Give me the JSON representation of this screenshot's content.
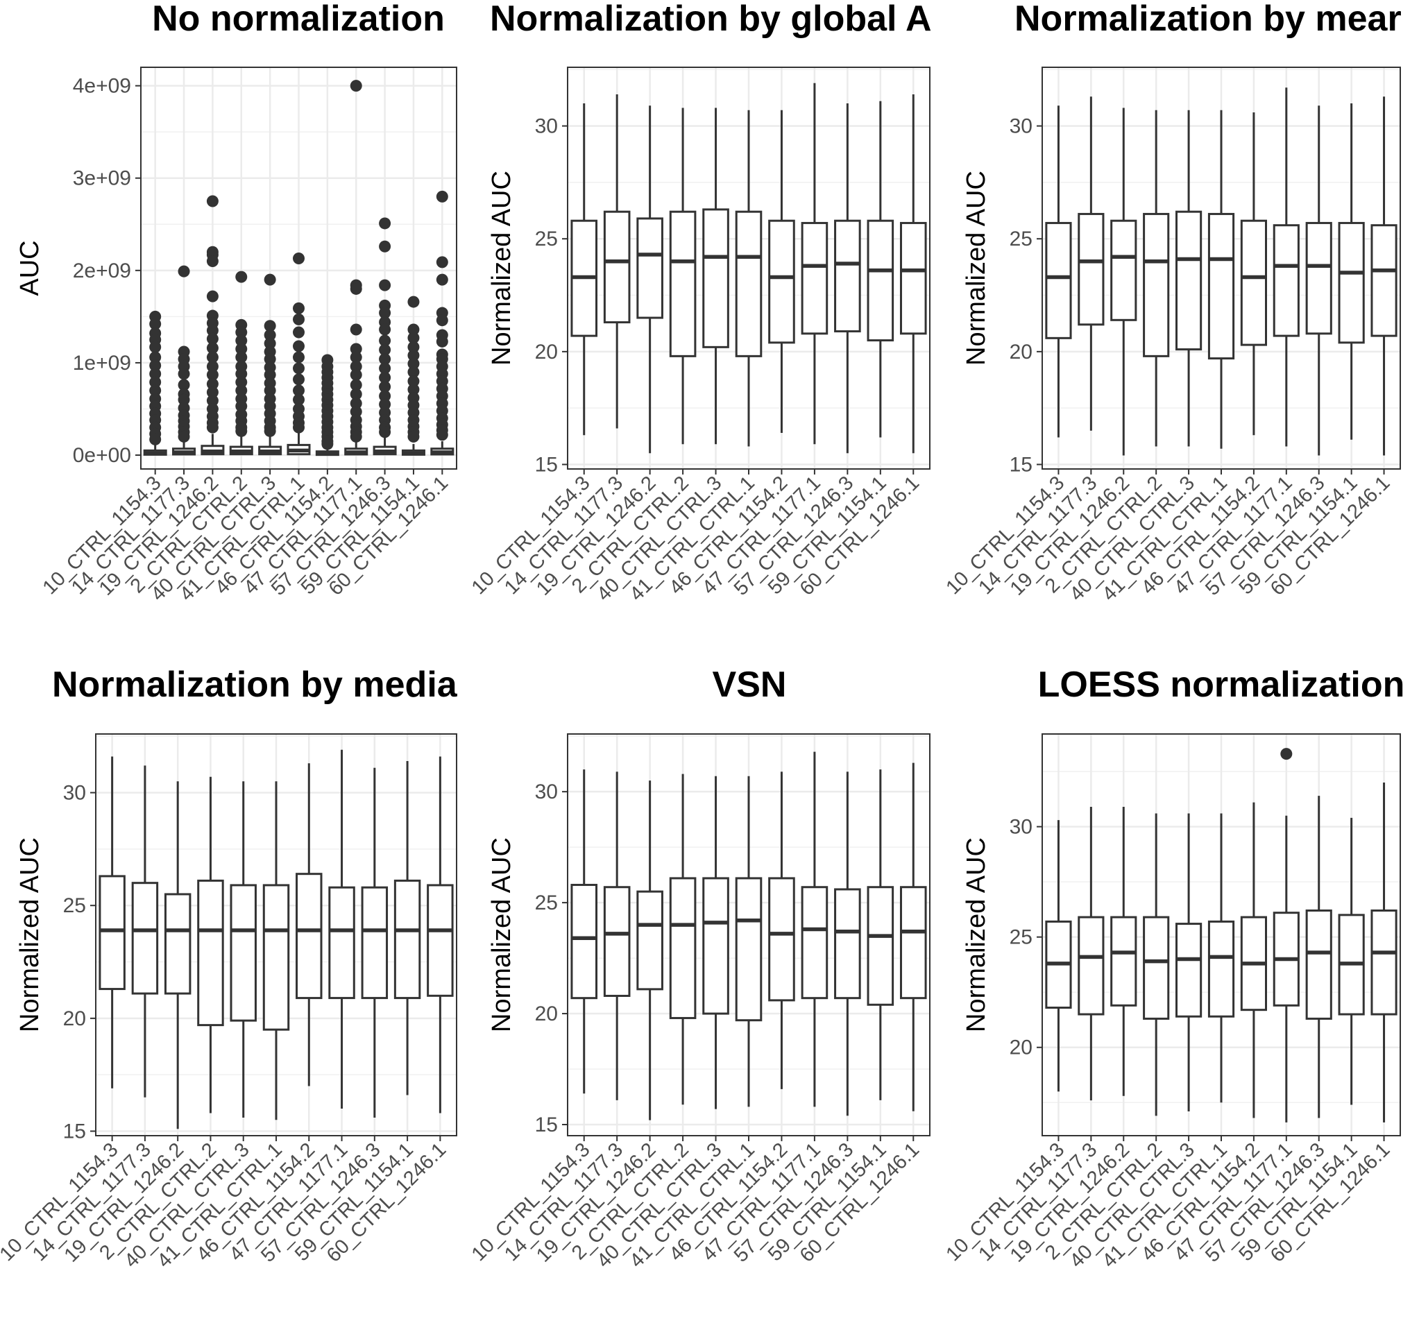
{
  "chart_data": [
    {
      "type": "box",
      "title": "No normalization",
      "ylabel": "AUC",
      "ylim": [
        -150000000,
        4200000000
      ],
      "yticks": [
        0,
        1000000000,
        2000000000,
        3000000000,
        4000000000
      ],
      "ytick_labels": [
        "0e+00",
        "1e+09",
        "2e+09",
        "3e+09",
        "4e+09"
      ],
      "categories": [
        "10_CTRL_1154.3",
        "14_CTRL_1177.3",
        "19_CTRL_1246.2",
        "2_CTRL_CTRL.2",
        "40_CTRL_CTRL.3",
        "41_CTRL_CTRL.1",
        "46_CTRL_1154.2",
        "47_CTRL_1177.1",
        "57_CTRL_1246.3",
        "59_CTRL_1154.1",
        "60_CTRL_1246.1"
      ],
      "boxes": [
        {
          "lower": 0,
          "q1": 5000000,
          "median": 20000000,
          "q3": 50000000,
          "upper": 110000000,
          "outliers": [
            1500000000,
            1420000000,
            1320000000,
            1250000000,
            1170000000,
            1060000000,
            970000000,
            880000000,
            790000000,
            700000000,
            610000000,
            530000000,
            450000000,
            380000000,
            300000000,
            230000000,
            170000000
          ]
        },
        {
          "lower": 0,
          "q1": 8000000,
          "median": 30000000,
          "q3": 70000000,
          "upper": 150000000,
          "outliers": [
            1990000000,
            1120000000,
            1040000000,
            960000000,
            880000000,
            760000000,
            660000000,
            600000000,
            510000000,
            430000000,
            370000000,
            310000000,
            250000000,
            200000000
          ]
        },
        {
          "lower": 0,
          "q1": 10000000,
          "median": 40000000,
          "q3": 100000000,
          "upper": 230000000,
          "outliers": [
            2750000000,
            2200000000,
            2170000000,
            2100000000,
            1720000000,
            1510000000,
            1430000000,
            1350000000,
            1260000000,
            1160000000,
            1060000000,
            960000000,
            870000000,
            770000000,
            680000000,
            590000000,
            500000000,
            420000000,
            350000000,
            300000000
          ]
        },
        {
          "lower": 0,
          "q1": 10000000,
          "median": 40000000,
          "q3": 90000000,
          "upper": 210000000,
          "outliers": [
            1930000000,
            1410000000,
            1330000000,
            1240000000,
            1150000000,
            1060000000,
            960000000,
            880000000,
            790000000,
            700000000,
            610000000,
            530000000,
            440000000,
            370000000,
            300000000,
            260000000
          ]
        },
        {
          "lower": 0,
          "q1": 10000000,
          "median": 40000000,
          "q3": 90000000,
          "upper": 210000000,
          "outliers": [
            1900000000,
            1400000000,
            1300000000,
            1210000000,
            1120000000,
            1040000000,
            950000000,
            870000000,
            780000000,
            700000000,
            610000000,
            530000000,
            450000000,
            370000000,
            300000000,
            260000000
          ]
        },
        {
          "lower": 0,
          "q1": 10000000,
          "median": 50000000,
          "q3": 110000000,
          "upper": 250000000,
          "outliers": [
            2130000000,
            1590000000,
            1470000000,
            1330000000,
            1180000000,
            1060000000,
            940000000,
            820000000,
            700000000,
            600000000,
            500000000,
            420000000,
            350000000,
            300000000
          ]
        },
        {
          "lower": 0,
          "q1": 3000000,
          "median": 15000000,
          "q3": 40000000,
          "upper": 90000000,
          "outliers": [
            1030000000,
            960000000,
            900000000,
            840000000,
            780000000,
            720000000,
            660000000,
            600000000,
            540000000,
            480000000,
            420000000,
            360000000,
            300000000,
            250000000,
            200000000,
            150000000,
            120000000
          ]
        },
        {
          "lower": 0,
          "q1": 8000000,
          "median": 30000000,
          "q3": 70000000,
          "upper": 160000000,
          "outliers": [
            4000000000,
            1840000000,
            1800000000,
            1360000000,
            1150000000,
            1060000000,
            960000000,
            870000000,
            760000000,
            660000000,
            560000000,
            470000000,
            380000000,
            310000000,
            250000000,
            200000000
          ]
        },
        {
          "lower": 0,
          "q1": 10000000,
          "median": 40000000,
          "q3": 90000000,
          "upper": 200000000,
          "outliers": [
            2510000000,
            2260000000,
            1840000000,
            1620000000,
            1540000000,
            1440000000,
            1360000000,
            1240000000,
            1140000000,
            1040000000,
            940000000,
            840000000,
            740000000,
            640000000,
            550000000,
            460000000,
            380000000,
            300000000,
            250000000
          ]
        },
        {
          "lower": 0,
          "q1": 5000000,
          "median": 20000000,
          "q3": 50000000,
          "upper": 120000000,
          "outliers": [
            1660000000,
            1360000000,
            1270000000,
            1170000000,
            1080000000,
            990000000,
            900000000,
            800000000,
            710000000,
            620000000,
            540000000,
            460000000,
            380000000,
            310000000,
            250000000,
            200000000
          ]
        },
        {
          "lower": 0,
          "q1": 8000000,
          "median": 30000000,
          "q3": 70000000,
          "upper": 150000000,
          "outliers": [
            2800000000,
            2090000000,
            1900000000,
            1540000000,
            1460000000,
            1300000000,
            1230000000,
            1090000000,
            1040000000,
            960000000,
            880000000,
            800000000,
            720000000,
            640000000,
            560000000,
            480000000,
            400000000,
            330000000,
            270000000,
            220000000
          ]
        }
      ]
    },
    {
      "type": "box",
      "title": "Normalization by global A",
      "ylabel": "Normalized AUC",
      "ylim": [
        14.8,
        32.6
      ],
      "yticks": [
        15,
        20,
        25,
        30
      ],
      "ytick_labels": [
        "15",
        "20",
        "25",
        "30"
      ],
      "categories": [
        "10_CTRL_1154.3",
        "14_CTRL_1177.3",
        "19_CTRL_1246.2",
        "2_CTRL_CTRL.2",
        "40_CTRL_CTRL.3",
        "41_CTRL_CTRL.1",
        "46_CTRL_1154.2",
        "47_CTRL_1177.1",
        "57_CTRL_1246.3",
        "59_CTRL_1154.1",
        "60_CTRL_1246.1"
      ],
      "boxes": [
        {
          "lower": 16.3,
          "q1": 20.7,
          "median": 23.3,
          "q3": 25.8,
          "upper": 31.0,
          "outliers": []
        },
        {
          "lower": 16.6,
          "q1": 21.3,
          "median": 24.0,
          "q3": 26.2,
          "upper": 31.4,
          "outliers": []
        },
        {
          "lower": 15.5,
          "q1": 21.5,
          "median": 24.3,
          "q3": 25.9,
          "upper": 30.9,
          "outliers": []
        },
        {
          "lower": 15.9,
          "q1": 19.8,
          "median": 24.0,
          "q3": 26.2,
          "upper": 30.8,
          "outliers": []
        },
        {
          "lower": 15.9,
          "q1": 20.2,
          "median": 24.2,
          "q3": 26.3,
          "upper": 30.8,
          "outliers": []
        },
        {
          "lower": 15.8,
          "q1": 19.8,
          "median": 24.2,
          "q3": 26.2,
          "upper": 30.7,
          "outliers": []
        },
        {
          "lower": 16.4,
          "q1": 20.4,
          "median": 23.3,
          "q3": 25.8,
          "upper": 30.7,
          "outliers": []
        },
        {
          "lower": 15.9,
          "q1": 20.8,
          "median": 23.8,
          "q3": 25.7,
          "upper": 31.9,
          "outliers": []
        },
        {
          "lower": 15.5,
          "q1": 20.9,
          "median": 23.9,
          "q3": 25.8,
          "upper": 31.0,
          "outliers": []
        },
        {
          "lower": 16.2,
          "q1": 20.5,
          "median": 23.6,
          "q3": 25.8,
          "upper": 31.1,
          "outliers": []
        },
        {
          "lower": 15.5,
          "q1": 20.8,
          "median": 23.6,
          "q3": 25.7,
          "upper": 31.4,
          "outliers": []
        }
      ]
    },
    {
      "type": "box",
      "title": "Normalization by mear",
      "ylabel": "Normalized AUC",
      "ylim": [
        14.8,
        32.6
      ],
      "yticks": [
        15,
        20,
        25,
        30
      ],
      "ytick_labels": [
        "15",
        "20",
        "25",
        "30"
      ],
      "categories": [
        "10_CTRL_1154.3",
        "14_CTRL_1177.3",
        "19_CTRL_1246.2",
        "2_CTRL_CTRL.2",
        "40_CTRL_CTRL.3",
        "41_CTRL_CTRL.1",
        "46_CTRL_1154.2",
        "47_CTRL_1177.1",
        "57_CTRL_1246.3",
        "59_CTRL_1154.1",
        "60_CTRL_1246.1"
      ],
      "boxes": [
        {
          "lower": 16.2,
          "q1": 20.6,
          "median": 23.3,
          "q3": 25.7,
          "upper": 30.9,
          "outliers": []
        },
        {
          "lower": 16.5,
          "q1": 21.2,
          "median": 24.0,
          "q3": 26.1,
          "upper": 31.3,
          "outliers": []
        },
        {
          "lower": 15.4,
          "q1": 21.4,
          "median": 24.2,
          "q3": 25.8,
          "upper": 30.8,
          "outliers": []
        },
        {
          "lower": 15.8,
          "q1": 19.8,
          "median": 24.0,
          "q3": 26.1,
          "upper": 30.7,
          "outliers": []
        },
        {
          "lower": 15.8,
          "q1": 20.1,
          "median": 24.1,
          "q3": 26.2,
          "upper": 30.7,
          "outliers": []
        },
        {
          "lower": 15.7,
          "q1": 19.7,
          "median": 24.1,
          "q3": 26.1,
          "upper": 30.7,
          "outliers": []
        },
        {
          "lower": 16.3,
          "q1": 20.3,
          "median": 23.3,
          "q3": 25.8,
          "upper": 30.6,
          "outliers": []
        },
        {
          "lower": 15.8,
          "q1": 20.7,
          "median": 23.8,
          "q3": 25.6,
          "upper": 31.7,
          "outliers": []
        },
        {
          "lower": 15.4,
          "q1": 20.8,
          "median": 23.8,
          "q3": 25.7,
          "upper": 30.9,
          "outliers": []
        },
        {
          "lower": 16.1,
          "q1": 20.4,
          "median": 23.5,
          "q3": 25.7,
          "upper": 31.0,
          "outliers": []
        },
        {
          "lower": 15.4,
          "q1": 20.7,
          "median": 23.6,
          "q3": 25.6,
          "upper": 31.3,
          "outliers": []
        }
      ]
    },
    {
      "type": "box",
      "title": "Normalization by media",
      "ylabel": "Normalized AUC",
      "ylim": [
        14.8,
        32.6
      ],
      "yticks": [
        15,
        20,
        25,
        30
      ],
      "ytick_labels": [
        "15",
        "20",
        "25",
        "30"
      ],
      "categories": [
        "10_CTRL_1154.3",
        "14_CTRL_1177.3",
        "19_CTRL_1246.2",
        "2_CTRL_CTRL.2",
        "40_CTRL_CTRL.3",
        "41_CTRL_CTRL.1",
        "46_CTRL_1154.2",
        "47_CTRL_1177.1",
        "57_CTRL_1246.3",
        "59_CTRL_1154.1",
        "60_CTRL_1246.1"
      ],
      "boxes": [
        {
          "lower": 16.9,
          "q1": 21.3,
          "median": 23.9,
          "q3": 26.3,
          "upper": 31.6,
          "outliers": []
        },
        {
          "lower": 16.5,
          "q1": 21.1,
          "median": 23.9,
          "q3": 26.0,
          "upper": 31.2,
          "outliers": []
        },
        {
          "lower": 15.1,
          "q1": 21.1,
          "median": 23.9,
          "q3": 25.5,
          "upper": 30.5,
          "outliers": []
        },
        {
          "lower": 15.8,
          "q1": 19.7,
          "median": 23.9,
          "q3": 26.1,
          "upper": 30.7,
          "outliers": []
        },
        {
          "lower": 15.6,
          "q1": 19.9,
          "median": 23.9,
          "q3": 25.9,
          "upper": 30.5,
          "outliers": []
        },
        {
          "lower": 15.5,
          "q1": 19.5,
          "median": 23.9,
          "q3": 25.9,
          "upper": 30.5,
          "outliers": []
        },
        {
          "lower": 17.0,
          "q1": 20.9,
          "median": 23.9,
          "q3": 26.4,
          "upper": 31.3,
          "outliers": []
        },
        {
          "lower": 16.0,
          "q1": 20.9,
          "median": 23.9,
          "q3": 25.8,
          "upper": 31.9,
          "outliers": []
        },
        {
          "lower": 15.6,
          "q1": 20.9,
          "median": 23.9,
          "q3": 25.8,
          "upper": 31.1,
          "outliers": []
        },
        {
          "lower": 16.6,
          "q1": 20.9,
          "median": 23.9,
          "q3": 26.1,
          "upper": 31.4,
          "outliers": []
        },
        {
          "lower": 15.8,
          "q1": 21.0,
          "median": 23.9,
          "q3": 25.9,
          "upper": 31.6,
          "outliers": []
        }
      ]
    },
    {
      "type": "box",
      "title": "VSN",
      "ylabel": "Normalized AUC",
      "ylim": [
        14.5,
        32.6
      ],
      "yticks": [
        15,
        20,
        25,
        30
      ],
      "ytick_labels": [
        "15",
        "20",
        "25",
        "30"
      ],
      "categories": [
        "10_CTRL_1154.3",
        "14_CTRL_1177.3",
        "19_CTRL_1246.2",
        "2_CTRL_CTRL.2",
        "40_CTRL_CTRL.3",
        "41_CTRL_CTRL.1",
        "46_CTRL_1154.2",
        "47_CTRL_1177.1",
        "57_CTRL_1246.3",
        "59_CTRL_1154.1",
        "60_CTRL_1246.1"
      ],
      "boxes": [
        {
          "lower": 16.4,
          "q1": 20.7,
          "median": 23.4,
          "q3": 25.8,
          "upper": 31.0,
          "outliers": []
        },
        {
          "lower": 16.1,
          "q1": 20.8,
          "median": 23.6,
          "q3": 25.7,
          "upper": 30.9,
          "outliers": []
        },
        {
          "lower": 15.2,
          "q1": 21.1,
          "median": 24.0,
          "q3": 25.5,
          "upper": 30.5,
          "outliers": []
        },
        {
          "lower": 15.9,
          "q1": 19.8,
          "median": 24.0,
          "q3": 26.1,
          "upper": 30.8,
          "outliers": []
        },
        {
          "lower": 15.7,
          "q1": 20.0,
          "median": 24.1,
          "q3": 26.1,
          "upper": 30.7,
          "outliers": []
        },
        {
          "lower": 15.8,
          "q1": 19.7,
          "median": 24.2,
          "q3": 26.1,
          "upper": 30.7,
          "outliers": []
        },
        {
          "lower": 16.6,
          "q1": 20.6,
          "median": 23.6,
          "q3": 26.1,
          "upper": 30.9,
          "outliers": []
        },
        {
          "lower": 15.8,
          "q1": 20.7,
          "median": 23.8,
          "q3": 25.7,
          "upper": 31.8,
          "outliers": []
        },
        {
          "lower": 15.4,
          "q1": 20.7,
          "median": 23.7,
          "q3": 25.6,
          "upper": 30.9,
          "outliers": []
        },
        {
          "lower": 16.1,
          "q1": 20.4,
          "median": 23.5,
          "q3": 25.7,
          "upper": 31.0,
          "outliers": []
        },
        {
          "lower": 15.6,
          "q1": 20.7,
          "median": 23.7,
          "q3": 25.7,
          "upper": 31.3,
          "outliers": []
        }
      ]
    },
    {
      "type": "box",
      "title": "LOESS normalization",
      "ylabel": "Normalized AUC",
      "ylim": [
        16.0,
        34.2
      ],
      "yticks": [
        20,
        25,
        30
      ],
      "ytick_labels": [
        "20",
        "25",
        "30"
      ],
      "categories": [
        "10_CTRL_1154.3",
        "14_CTRL_1177.3",
        "19_CTRL_1246.2",
        "2_CTRL_CTRL.2",
        "40_CTRL_CTRL.3",
        "41_CTRL_CTRL.1",
        "46_CTRL_1154.2",
        "47_CTRL_1177.1",
        "57_CTRL_1246.3",
        "59_CTRL_1154.1",
        "60_CTRL_1246.1"
      ],
      "boxes": [
        {
          "lower": 18.0,
          "q1": 21.8,
          "median": 23.8,
          "q3": 25.7,
          "upper": 30.3,
          "outliers": []
        },
        {
          "lower": 17.6,
          "q1": 21.5,
          "median": 24.1,
          "q3": 25.9,
          "upper": 30.9,
          "outliers": []
        },
        {
          "lower": 17.8,
          "q1": 21.9,
          "median": 24.3,
          "q3": 25.9,
          "upper": 30.9,
          "outliers": []
        },
        {
          "lower": 16.9,
          "q1": 21.3,
          "median": 23.9,
          "q3": 25.9,
          "upper": 30.6,
          "outliers": []
        },
        {
          "lower": 17.1,
          "q1": 21.4,
          "median": 24.0,
          "q3": 25.6,
          "upper": 30.6,
          "outliers": []
        },
        {
          "lower": 17.5,
          "q1": 21.4,
          "median": 24.1,
          "q3": 25.7,
          "upper": 30.6,
          "outliers": []
        },
        {
          "lower": 16.8,
          "q1": 21.7,
          "median": 23.8,
          "q3": 25.9,
          "upper": 31.1,
          "outliers": []
        },
        {
          "lower": 16.6,
          "q1": 21.9,
          "median": 24.0,
          "q3": 26.1,
          "upper": 30.5,
          "outliers": [
            33.3
          ]
        },
        {
          "lower": 16.8,
          "q1": 21.3,
          "median": 24.3,
          "q3": 26.2,
          "upper": 31.4,
          "outliers": []
        },
        {
          "lower": 17.4,
          "q1": 21.5,
          "median": 23.8,
          "q3": 26.0,
          "upper": 30.4,
          "outliers": []
        },
        {
          "lower": 16.6,
          "q1": 21.5,
          "median": 24.3,
          "q3": 26.2,
          "upper": 32.0,
          "outliers": []
        }
      ]
    }
  ]
}
